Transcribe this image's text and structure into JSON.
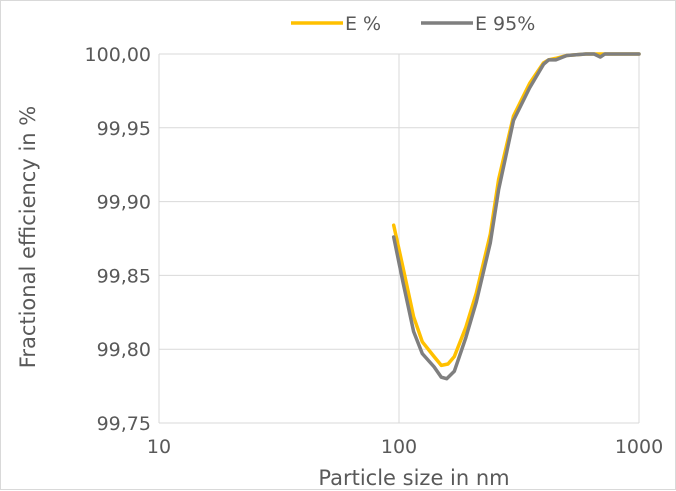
{
  "chart_data": {
    "type": "line",
    "title": "",
    "xlabel": "Particle size in nm",
    "ylabel": "Fractional efficiency in %",
    "xscale": "log",
    "xlim": [
      10,
      1000
    ],
    "ylim": [
      99.75,
      100.0
    ],
    "x_ticks": [
      10,
      100,
      1000
    ],
    "x_tick_labels": [
      "10",
      "100",
      "1000"
    ],
    "y_ticks": [
      99.75,
      99.8,
      99.85,
      99.9,
      99.95,
      100.0
    ],
    "y_tick_labels": [
      "99,75",
      "99,80",
      "99,85",
      "99,90",
      "99,95",
      "100,00"
    ],
    "grid": "on",
    "legend_position": "top",
    "series": [
      {
        "name": "E %",
        "color": "#FFC000",
        "x": [
          95,
          104,
          115,
          125,
          140,
          150,
          160,
          170,
          190,
          210,
          240,
          260,
          300,
          350,
          400,
          420,
          450,
          500,
          600,
          700,
          800,
          1000
        ],
        "y": [
          99.884,
          99.855,
          99.822,
          99.805,
          99.795,
          99.789,
          99.79,
          99.795,
          99.815,
          99.838,
          99.878,
          99.915,
          99.958,
          99.98,
          99.994,
          99.996,
          99.997,
          99.999,
          100.0,
          100.0,
          100.0,
          100.0
        ]
      },
      {
        "name": "E 95%",
        "color": "#7F7F7F",
        "x": [
          95,
          104,
          115,
          125,
          140,
          150,
          158,
          170,
          190,
          210,
          240,
          260,
          300,
          350,
          400,
          420,
          450,
          500,
          600,
          650,
          690,
          720,
          750,
          800,
          1000
        ],
        "y": [
          99.876,
          99.845,
          99.812,
          99.797,
          99.788,
          99.781,
          99.78,
          99.785,
          99.808,
          99.832,
          99.872,
          99.908,
          99.955,
          99.977,
          99.993,
          99.996,
          99.996,
          99.999,
          100.0,
          100.0,
          99.998,
          100.0,
          100.0,
          100.0,
          100.0
        ]
      }
    ]
  }
}
